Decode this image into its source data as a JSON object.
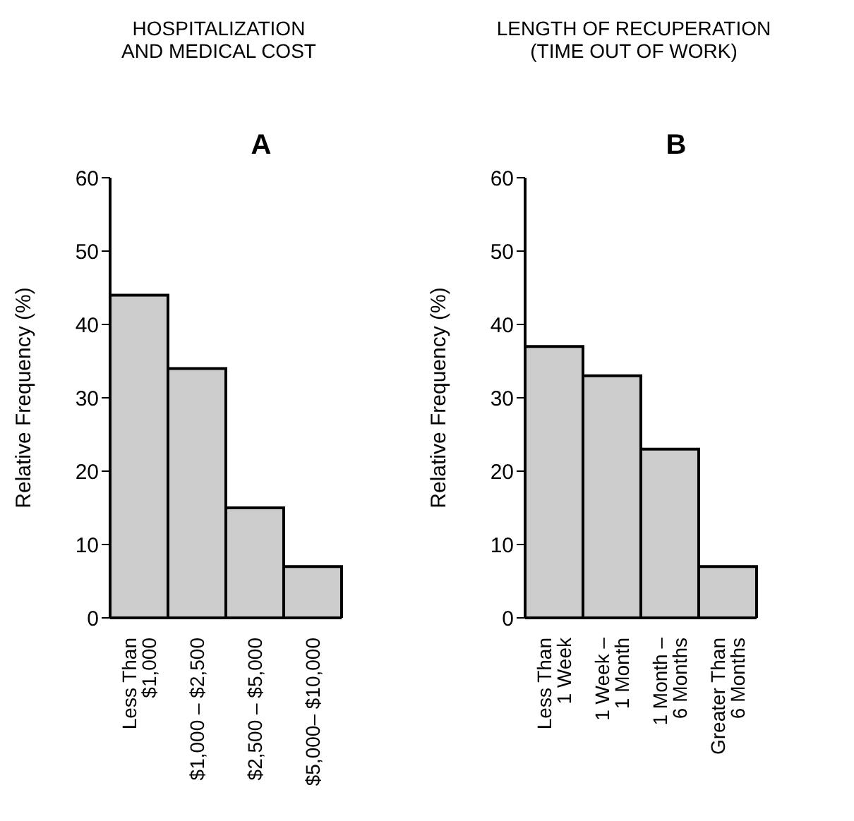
{
  "chart_data": [
    {
      "type": "bar",
      "title": "HOSPITALIZATION\nAND MEDICAL COST",
      "subtitle": "A",
      "ylabel": "Relative Frequency (%)",
      "categories": [
        "Less Than\n$1,000",
        "$1,000 – $2,500",
        "$2,500 – $5,000",
        "$5,000– $10,000"
      ],
      "values": [
        44,
        34,
        15,
        7
      ],
      "color": "#cccccc",
      "ylim": [
        0,
        60
      ],
      "yticks": [
        0,
        10,
        20,
        30,
        40,
        50,
        60
      ],
      "grid": false,
      "legend": false
    },
    {
      "type": "bar",
      "title": "LENGTH OF RECUPERATION\n(TIME OUT OF WORK)",
      "subtitle": "B",
      "ylabel": "Relative Frequency (%)",
      "categories": [
        "Less Than\n1 Week",
        "1 Week –\n1 Month",
        "1 Month –\n6 Months",
        "Greater Than\n6 Months"
      ],
      "values": [
        37,
        33,
        23,
        7
      ],
      "color": "#cccccc",
      "ylim": [
        0,
        60
      ],
      "yticks": [
        0,
        10,
        20,
        30,
        40,
        50,
        60
      ],
      "grid": false,
      "legend": false
    }
  ]
}
